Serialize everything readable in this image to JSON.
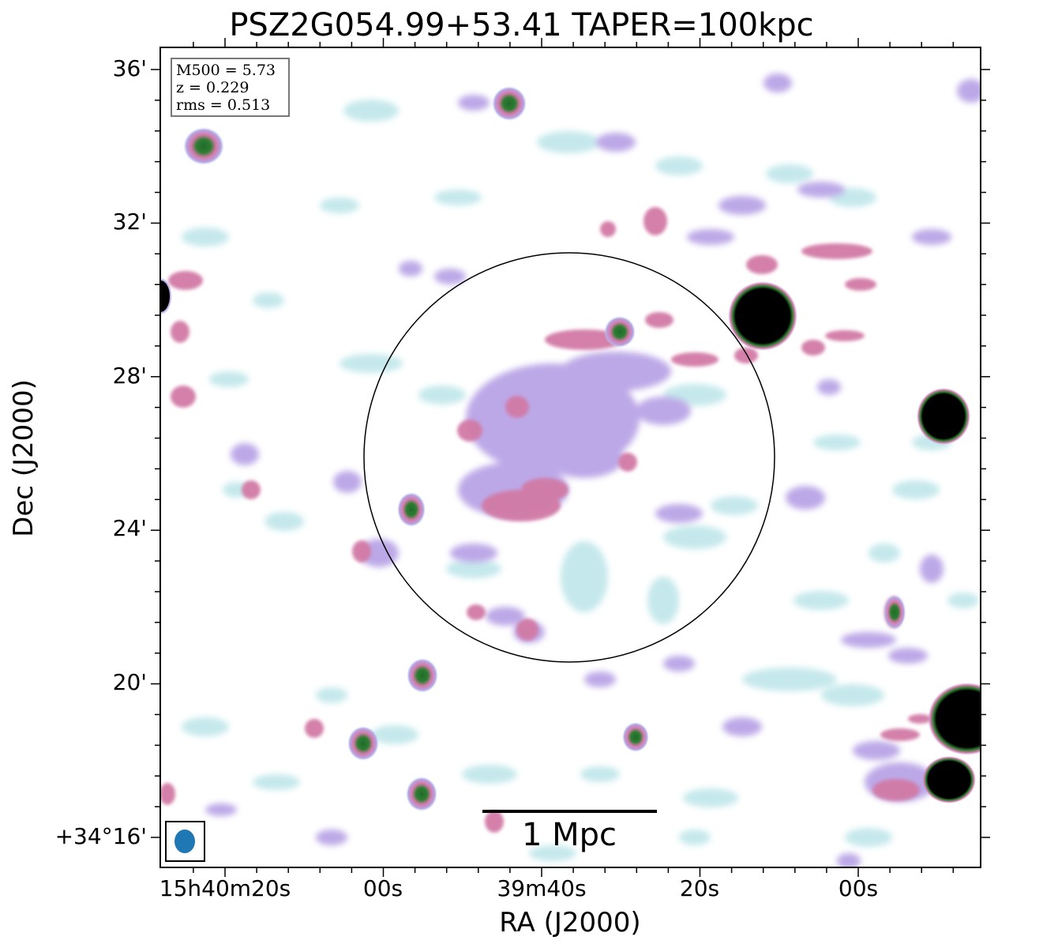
{
  "figure": {
    "title": "PSZ2G054.99+53.41 TAPER=100kpc",
    "x_axis_label": "RA (J2000)",
    "y_axis_label": "Dec (J2000)",
    "x_ticks": [
      "15h40m20s",
      "00s",
      "39m40s",
      "20s",
      "00s"
    ],
    "y_ticks": [
      "36'",
      "32'",
      "28'",
      "24'",
      "20'",
      "+34°16'"
    ],
    "info_box": {
      "mass_line": "M500 = 5.73",
      "redshift_line": "z = 0.229",
      "rms_line": "rms = 0.513"
    },
    "scale_bar_label": "1 Mpc",
    "colors": {
      "faint_emission": "#bfe6ea",
      "mid_emission": "#b9a4e6",
      "strong_emission": "#d27aa6",
      "peak_emission": "#2e7d32",
      "saturated_source": "#000000",
      "beam": "#1f77b4"
    }
  }
}
